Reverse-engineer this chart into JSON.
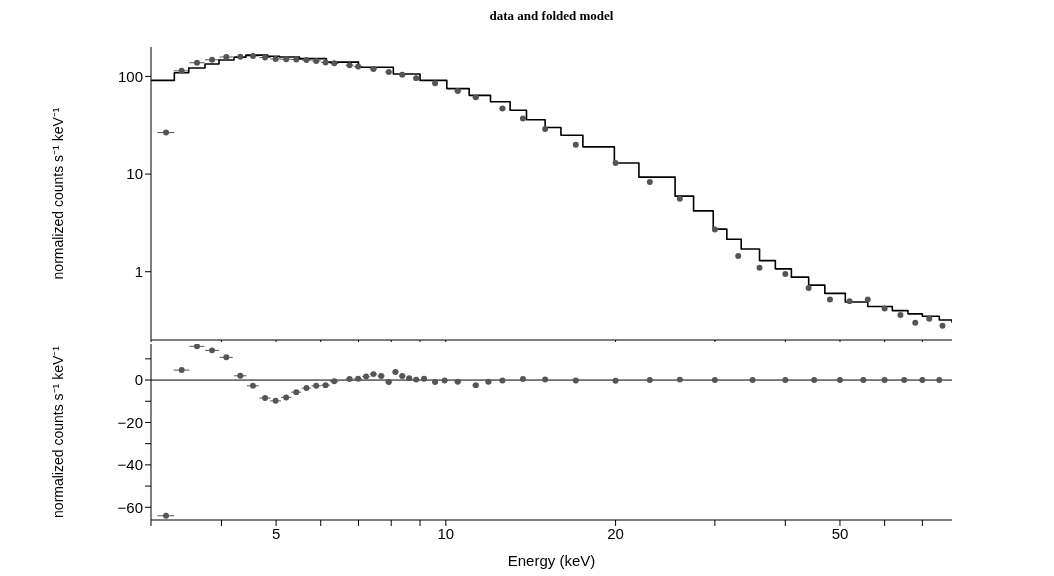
{
  "chart_data": [
    {
      "type": "scatter",
      "title": "data and folded model",
      "ylabel": "normalized counts s⁻¹ keV⁻¹",
      "log": "xy",
      "xlim": [
        3,
        79
      ],
      "ylim": [
        0.2,
        200
      ],
      "xticks": [
        {
          "value": 3,
          "label": null
        },
        {
          "value": 4,
          "label": null
        },
        5,
        {
          "value": 6,
          "label": null
        },
        {
          "value": 7,
          "label": null
        },
        {
          "value": 8,
          "label": null
        },
        {
          "value": 9,
          "label": null
        },
        10,
        20,
        {
          "value": 30,
          "label": null
        },
        {
          "value": 40,
          "label": null
        },
        50,
        {
          "value": 60,
          "label": null
        },
        {
          "value": 70,
          "label": null
        }
      ],
      "yticks": [
        1,
        10,
        100
      ],
      "tick_labels": "y",
      "legend": false,
      "grid": false,
      "series": [
        {
          "color": "#555555",
          "marker": "circle",
          "x": [
            3.19,
            3.4,
            3.62,
            3.85,
            4.08,
            4.32,
            4.55,
            4.78,
            4.99,
            5.21,
            5.43,
            5.66,
            5.89,
            6.12,
            6.34,
            6.75,
            6.99,
            7.44,
            7.92,
            8.37,
            8.86,
            9.57,
            10.5,
            11.3,
            12.6,
            13.7,
            15,
            17,
            20,
            23,
            26,
            30,
            33,
            36,
            40,
            44,
            48,
            52,
            56,
            60,
            64,
            68,
            72,
            76
          ],
          "values": [
            26.6,
            114,
            138,
            148,
            158,
            159,
            162,
            156,
            151,
            150,
            149,
            147,
            144,
            139,
            136,
            130,
            126,
            119,
            111,
            104,
            96,
            85,
            71,
            61,
            47,
            37,
            29,
            20,
            13,
            8.3,
            5.6,
            2.7,
            1.45,
            1.1,
            0.95,
            0.68,
            0.52,
            0.5,
            0.52,
            0.42,
            0.36,
            0.3,
            0.33,
            0.28
          ],
          "xerrors": [
            0.11,
            0.11,
            0.11,
            0.11,
            0.11,
            0.11,
            0.11,
            0.11,
            0.11,
            0.11,
            0.11,
            0.11,
            0.11,
            0.11,
            0.11,
            0.11,
            0.11,
            0.11,
            0.11,
            0.11,
            0.11,
            0.11,
            0.15,
            0.15,
            0.15,
            0.15,
            null,
            null,
            null,
            null,
            null,
            null,
            null,
            null,
            null,
            null,
            null,
            null,
            null,
            null,
            null,
            null,
            null,
            null
          ]
        },
        {
          "type": "step",
          "color": "#000000",
          "x": [
            3,
            3.3,
            3.5,
            3.74,
            3.96,
            4.21,
            4.42,
            4.83,
            5.07,
            5.5,
            6.14,
            7,
            8.07,
            9,
            10.04,
            11,
            12,
            13,
            13.9,
            15,
            16,
            17.5,
            19.9,
            22,
            25.5,
            27.5,
            29.8,
            31.5,
            33.4,
            36,
            38.4,
            41,
            44,
            47,
            51.1,
            56,
            61.9,
            66,
            70,
            75,
            79
          ],
          "values": [
            91,
            109,
            122,
            134,
            147,
            157,
            165,
            161,
            158,
            152,
            140,
            124,
            106,
            91,
            75,
            64,
            55,
            45,
            36,
            30,
            25,
            19,
            13,
            9.3,
            5.95,
            4.2,
            2.73,
            2.15,
            1.71,
            1.3,
            1.07,
            0.88,
            0.73,
            0.6,
            0.49,
            0.44,
            0.4,
            0.37,
            0.35,
            0.32,
            0.3
          ]
        }
      ]
    },
    {
      "type": "scatter",
      "xlabel": "Energy (keV)",
      "ylabel": "normalized counts s⁻¹ keV⁻¹",
      "log": "x",
      "xlim": [
        3,
        79
      ],
      "ylim": [
        -66,
        17
      ],
      "xticks": [
        {
          "value": 3,
          "label": null
        },
        {
          "value": 4,
          "label": null
        },
        5,
        {
          "value": 6,
          "label": null
        },
        {
          "value": 7,
          "label": null
        },
        {
          "value": 8,
          "label": null
        },
        {
          "value": 9,
          "label": null
        },
        10,
        20,
        {
          "value": 30,
          "label": null
        },
        {
          "value": 40,
          "label": null
        },
        50,
        {
          "value": 60,
          "label": null
        },
        {
          "value": 70,
          "label": null
        }
      ],
      "yticks": [
        {
          "value": 10,
          "label": null
        },
        0,
        {
          "value": -10,
          "label": null
        },
        -20,
        {
          "value": -30,
          "label": null
        },
        -40,
        {
          "value": -50,
          "label": null
        },
        -60
      ],
      "legend": false,
      "grid": false,
      "ref_lines": [
        {
          "axis": "y",
          "value": 0,
          "color": "#000000"
        }
      ],
      "series": [
        {
          "color": "#555555",
          "marker": "circle",
          "x": [
            3.19,
            3.4,
            3.62,
            3.85,
            4.08,
            4.32,
            4.55,
            4.78,
            4.99,
            5.21,
            5.43,
            5.66,
            5.89,
            6.12,
            6.34,
            6.75,
            6.99,
            7.22,
            7.44,
            7.68,
            7.92,
            8.14,
            8.37,
            8.61,
            8.86,
            9.15,
            9.57,
            9.95,
            10.5,
            11.3,
            11.9,
            12.6,
            13.7,
            15,
            17,
            20,
            23,
            26,
            30,
            35,
            40,
            45,
            50,
            55,
            60,
            65,
            70,
            75
          ],
          "values": [
            -64,
            4.7,
            15.9,
            14,
            10.7,
            2,
            -2.7,
            -8.5,
            -9.8,
            -8.2,
            -5.7,
            -3.8,
            -2.7,
            -2.4,
            -0.6,
            0.5,
            0.6,
            1.7,
            2.8,
            1.9,
            -0.9,
            3.8,
            1.9,
            0.9,
            0.2,
            0.6,
            -0.9,
            -0.2,
            -0.8,
            -2.4,
            -0.8,
            -0.2,
            0.5,
            0.3,
            -0.2,
            -0.3,
            0,
            0.2,
            0,
            0,
            0,
            0,
            0,
            0,
            0,
            0,
            0,
            0
          ],
          "xerrors": [
            0.11,
            0.11,
            0.11,
            0.11,
            0.11,
            0.11,
            0.11,
            0.11,
            0.11,
            0.11,
            0.11,
            0.11,
            0.11,
            0.11,
            0.11,
            0.11,
            0.11,
            0.11,
            0.11,
            0.11,
            0.11,
            0.11,
            0.11,
            0.11,
            0.11,
            0.11,
            0.11,
            0.11,
            0.15,
            0.15,
            0.15,
            0.15,
            0.15,
            null,
            null,
            null,
            null,
            null,
            null,
            null,
            null,
            null,
            null,
            null,
            null,
            null,
            null,
            null
          ]
        }
      ]
    }
  ]
}
